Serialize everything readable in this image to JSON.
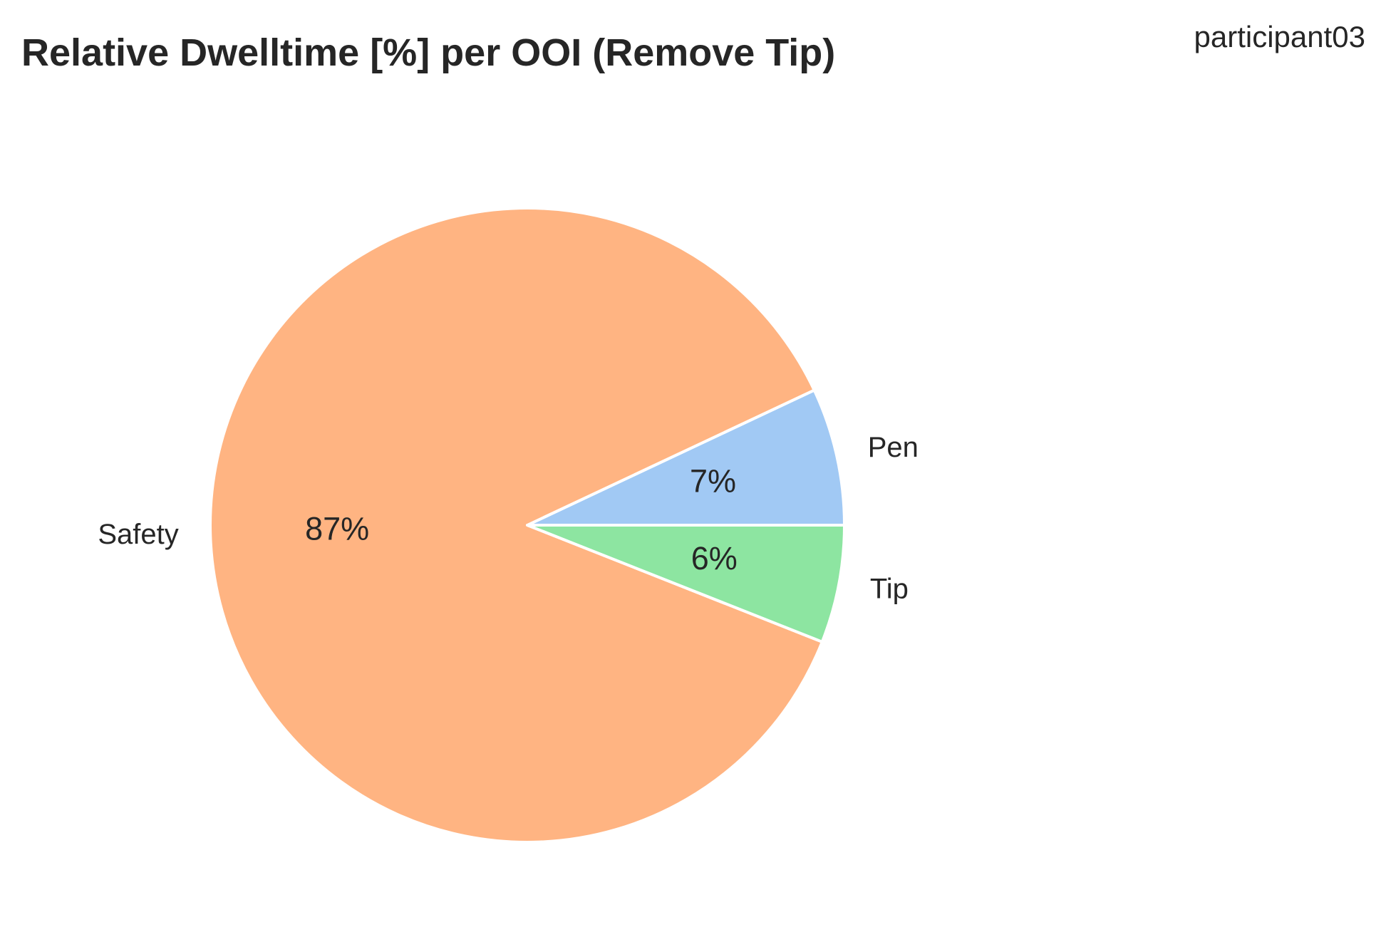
{
  "chart_data": {
    "type": "pie",
    "title": "Relative Dwelltime [%] per OOI (Remove Tip)",
    "participant": "participant03",
    "start_angle_deg": 0,
    "direction": "counterclockwise",
    "slices": [
      {
        "name": "Pen",
        "value": 7,
        "pct_label": "7%",
        "color": "#a1c9f4"
      },
      {
        "name": "Safety",
        "value": 87,
        "pct_label": "87%",
        "color": "#ffb482"
      },
      {
        "name": "Tip",
        "value": 6,
        "pct_label": "6%",
        "color": "#8de5a1"
      }
    ],
    "edge_color": "#ffffff",
    "legend": "none",
    "grid": false
  }
}
